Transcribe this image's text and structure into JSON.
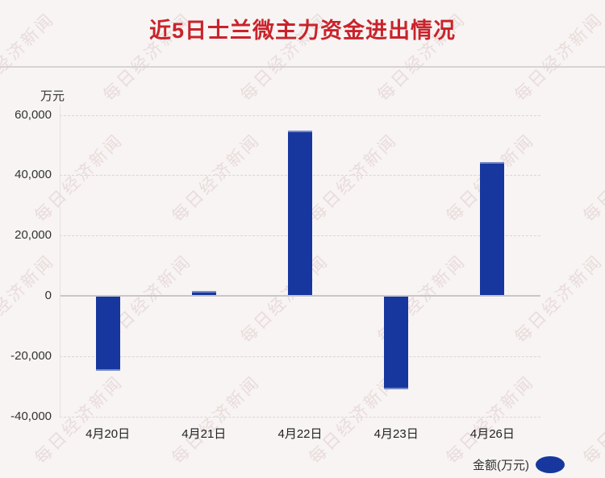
{
  "page": {
    "title": "近5日士兰微主力资金进出情况"
  },
  "watermark": {
    "text": "每日经济新闻"
  },
  "colors": {
    "title": "#c9232b",
    "bar": "#17379e",
    "watermark": "#e9dcdb",
    "background": "#f7f4f3"
  },
  "y_axis": {
    "unit": "万元",
    "ticks": [
      {
        "label": "60,000",
        "value": 60000
      },
      {
        "label": "40,000",
        "value": 40000
      },
      {
        "label": "20,000",
        "value": 20000
      },
      {
        "label": "0",
        "value": 0
      },
      {
        "label": "-20,000",
        "value": -20000
      },
      {
        "label": "-40,000",
        "value": -40000
      }
    ]
  },
  "x_axis": {
    "labels": [
      "4月20日",
      "4月21日",
      "4月22日",
      "4月23日",
      "4月26日"
    ]
  },
  "legend": {
    "label": "金额(万元)"
  },
  "chart_data": {
    "type": "bar",
    "title": "近5日士兰微主力资金进出情况",
    "categories": [
      "4月20日",
      "4月21日",
      "4月22日",
      "4月23日",
      "4月26日"
    ],
    "series": [
      {
        "name": "金额(万元)",
        "values": [
          -24500,
          1400,
          54500,
          -30800,
          44100
        ]
      }
    ],
    "xlabel": "",
    "ylabel": "万元",
    "ylim": [
      -40000,
      60000
    ],
    "ytick_step": 20000,
    "grid": "horizontal-dashed, zero-line-solid",
    "legend_position": "bottom-right",
    "bar_color": "#17379e"
  }
}
